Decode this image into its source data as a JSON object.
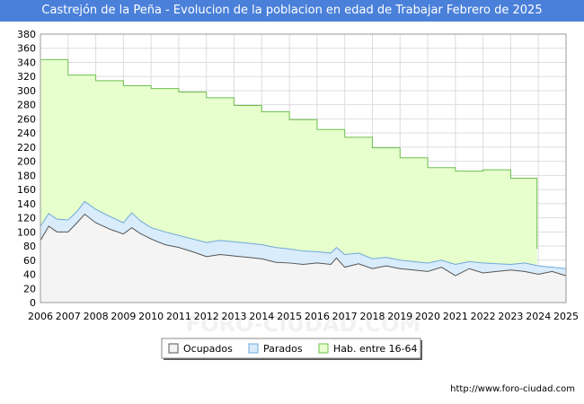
{
  "title": "Castrejón de la Peña - Evolucion de la poblacion en edad de Trabajar Febrero de 2025",
  "watermark": "FORO-CIUDAD.COM",
  "footer_url": "http://www.foro-ciudad.com",
  "colors": {
    "title_bg": "#4a80d9",
    "hab_fill": "#e6ffcc",
    "hab_line": "#6fbf4f",
    "parados_fill": "#d9ecfb",
    "parados_line": "#6fa8dc",
    "ocupados_fill": "#f4f4f4",
    "ocupados_line": "#555555"
  },
  "chart_data": {
    "type": "area",
    "ylim": [
      0,
      380
    ],
    "yticks": [
      0,
      20,
      40,
      60,
      80,
      100,
      120,
      140,
      160,
      180,
      200,
      220,
      240,
      260,
      280,
      300,
      320,
      340,
      360,
      380
    ],
    "xlim": [
      2006,
      2025
    ],
    "xticks": [
      2006,
      2007,
      2008,
      2009,
      2010,
      2011,
      2012,
      2013,
      2014,
      2015,
      2016,
      2017,
      2018,
      2019,
      2020,
      2021,
      2022,
      2023,
      2024,
      2025
    ],
    "legend": [
      "Ocupados",
      "Parados",
      "Hab. entre 16-64"
    ],
    "series": [
      {
        "name": "Hab. entre 16-64",
        "x": [
          2006,
          2007,
          2008,
          2009,
          2010,
          2011,
          2012,
          2013,
          2014,
          2015,
          2016,
          2017,
          2018,
          2019,
          2020,
          2021,
          2022,
          2023,
          2023.95
        ],
        "values": [
          344,
          322,
          314,
          307,
          303,
          298,
          290,
          279,
          270,
          259,
          245,
          234,
          219,
          205,
          191,
          186,
          188,
          176,
          76
        ]
      },
      {
        "name": "Parados",
        "x": [
          2006,
          2006.3,
          2006.6,
          2007,
          2007.3,
          2007.6,
          2008,
          2008.5,
          2009,
          2009.3,
          2009.6,
          2010,
          2010.5,
          2011,
          2011.5,
          2012,
          2012.5,
          2013,
          2013.5,
          2014,
          2014.5,
          2015,
          2015.5,
          2016,
          2016.5,
          2016.7,
          2017,
          2017.5,
          2018,
          2018.5,
          2019,
          2019.5,
          2020,
          2020.5,
          2021,
          2021.5,
          2022,
          2022.5,
          2023,
          2023.5,
          2024,
          2024.5,
          2025
        ],
        "values": [
          108,
          126,
          118,
          117,
          128,
          143,
          132,
          122,
          113,
          127,
          116,
          106,
          100,
          95,
          90,
          85,
          88,
          86,
          84,
          82,
          78,
          76,
          73,
          72,
          70,
          78,
          68,
          70,
          62,
          64,
          60,
          58,
          56,
          60,
          54,
          58,
          56,
          55,
          54,
          56,
          52,
          50,
          48
        ]
      },
      {
        "name": "Ocupados",
        "x": [
          2006,
          2006.3,
          2006.6,
          2007,
          2007.3,
          2007.6,
          2008,
          2008.5,
          2009,
          2009.3,
          2009.6,
          2010,
          2010.5,
          2011,
          2011.5,
          2012,
          2012.5,
          2013,
          2013.5,
          2014,
          2014.5,
          2015,
          2015.5,
          2016,
          2016.5,
          2016.7,
          2017,
          2017.5,
          2018,
          2018.5,
          2019,
          2019.5,
          2020,
          2020.5,
          2021,
          2021.5,
          2022,
          2022.5,
          2023,
          2023.5,
          2024,
          2024.5,
          2025
        ],
        "values": [
          88,
          108,
          100,
          100,
          112,
          125,
          113,
          104,
          97,
          106,
          98,
          90,
          82,
          78,
          72,
          65,
          68,
          66,
          64,
          62,
          57,
          56,
          54,
          56,
          54,
          63,
          50,
          55,
          48,
          52,
          48,
          46,
          44,
          50,
          38,
          48,
          42,
          44,
          46,
          44,
          40,
          44,
          38
        ]
      }
    ]
  }
}
